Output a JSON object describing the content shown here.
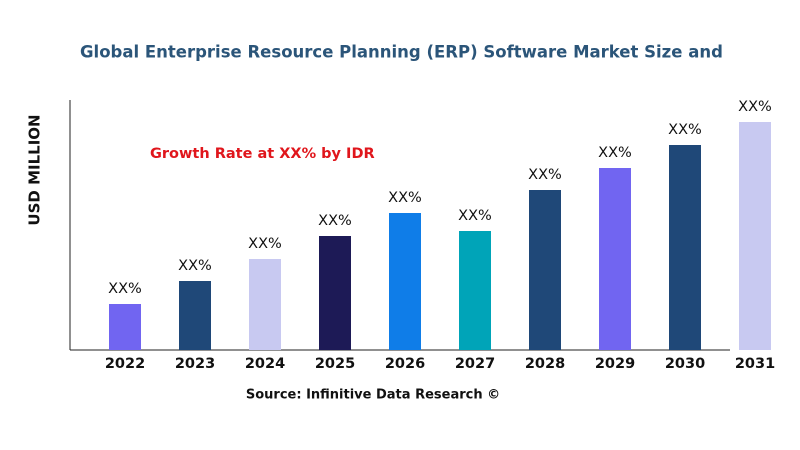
{
  "chart_data": {
    "type": "bar",
    "title": "Global Enterprise Resource Planning (ERP) Software  Market Size and",
    "ylabel": "USD MILLION",
    "annotation": "Growth Rate at XX% by IDR",
    "source": "Source: Infinitive Data Research ©",
    "categories": [
      "2022",
      "2023",
      "2024",
      "2025",
      "2026",
      "2027",
      "2028",
      "2029",
      "2030",
      "2031"
    ],
    "values": [
      46,
      69,
      91,
      114,
      137,
      119,
      160,
      182,
      205,
      228
    ],
    "value_labels": [
      "XX%",
      "XX%",
      "XX%",
      "XX%",
      "XX%",
      "XX%",
      "XX%",
      "XX%",
      "XX%",
      "XX%"
    ],
    "colors": [
      "#7165f1",
      "#1f4878",
      "#c8c9f1",
      "#1d1a56",
      "#0f7de8",
      "#00a4b8",
      "#1f4878",
      "#7165f1",
      "#1f4878",
      "#c8c9f1"
    ],
    "ylim": [
      0,
      250
    ]
  }
}
